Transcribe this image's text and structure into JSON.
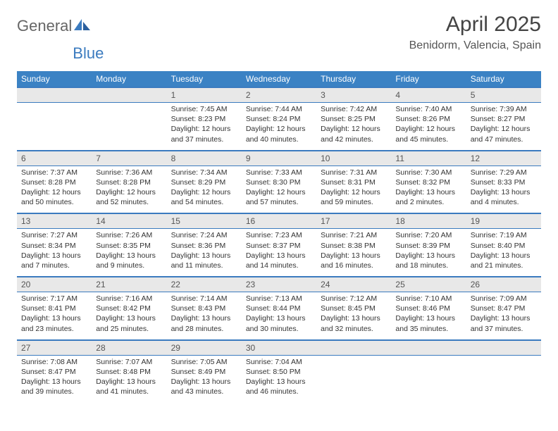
{
  "brand": {
    "general": "General",
    "blue": "Blue"
  },
  "title": "April 2025",
  "location": "Benidorm, Valencia, Spain",
  "colors": {
    "header_bg": "#3b82c4",
    "header_text": "#ffffff",
    "row_border": "#3b7bbf",
    "daynum_bg": "#e8e8e8",
    "text": "#333333",
    "title_text": "#444444",
    "logo_gray": "#666666",
    "logo_blue": "#3b7bbf",
    "background": "#ffffff"
  },
  "weekdays": [
    "Sunday",
    "Monday",
    "Tuesday",
    "Wednesday",
    "Thursday",
    "Friday",
    "Saturday"
  ],
  "typography": {
    "title_fontsize": 30,
    "location_fontsize": 16,
    "weekday_fontsize": 12,
    "daynum_fontsize": 12,
    "cell_fontsize": 10.5
  },
  "weeks": [
    [
      null,
      null,
      {
        "n": "1",
        "sr": "7:45 AM",
        "ss": "8:23 PM",
        "dl": "12 hours and 37 minutes."
      },
      {
        "n": "2",
        "sr": "7:44 AM",
        "ss": "8:24 PM",
        "dl": "12 hours and 40 minutes."
      },
      {
        "n": "3",
        "sr": "7:42 AM",
        "ss": "8:25 PM",
        "dl": "12 hours and 42 minutes."
      },
      {
        "n": "4",
        "sr": "7:40 AM",
        "ss": "8:26 PM",
        "dl": "12 hours and 45 minutes."
      },
      {
        "n": "5",
        "sr": "7:39 AM",
        "ss": "8:27 PM",
        "dl": "12 hours and 47 minutes."
      }
    ],
    [
      {
        "n": "6",
        "sr": "7:37 AM",
        "ss": "8:28 PM",
        "dl": "12 hours and 50 minutes."
      },
      {
        "n": "7",
        "sr": "7:36 AM",
        "ss": "8:28 PM",
        "dl": "12 hours and 52 minutes."
      },
      {
        "n": "8",
        "sr": "7:34 AM",
        "ss": "8:29 PM",
        "dl": "12 hours and 54 minutes."
      },
      {
        "n": "9",
        "sr": "7:33 AM",
        "ss": "8:30 PM",
        "dl": "12 hours and 57 minutes."
      },
      {
        "n": "10",
        "sr": "7:31 AM",
        "ss": "8:31 PM",
        "dl": "12 hours and 59 minutes."
      },
      {
        "n": "11",
        "sr": "7:30 AM",
        "ss": "8:32 PM",
        "dl": "13 hours and 2 minutes."
      },
      {
        "n": "12",
        "sr": "7:29 AM",
        "ss": "8:33 PM",
        "dl": "13 hours and 4 minutes."
      }
    ],
    [
      {
        "n": "13",
        "sr": "7:27 AM",
        "ss": "8:34 PM",
        "dl": "13 hours and 7 minutes."
      },
      {
        "n": "14",
        "sr": "7:26 AM",
        "ss": "8:35 PM",
        "dl": "13 hours and 9 minutes."
      },
      {
        "n": "15",
        "sr": "7:24 AM",
        "ss": "8:36 PM",
        "dl": "13 hours and 11 minutes."
      },
      {
        "n": "16",
        "sr": "7:23 AM",
        "ss": "8:37 PM",
        "dl": "13 hours and 14 minutes."
      },
      {
        "n": "17",
        "sr": "7:21 AM",
        "ss": "8:38 PM",
        "dl": "13 hours and 16 minutes."
      },
      {
        "n": "18",
        "sr": "7:20 AM",
        "ss": "8:39 PM",
        "dl": "13 hours and 18 minutes."
      },
      {
        "n": "19",
        "sr": "7:19 AM",
        "ss": "8:40 PM",
        "dl": "13 hours and 21 minutes."
      }
    ],
    [
      {
        "n": "20",
        "sr": "7:17 AM",
        "ss": "8:41 PM",
        "dl": "13 hours and 23 minutes."
      },
      {
        "n": "21",
        "sr": "7:16 AM",
        "ss": "8:42 PM",
        "dl": "13 hours and 25 minutes."
      },
      {
        "n": "22",
        "sr": "7:14 AM",
        "ss": "8:43 PM",
        "dl": "13 hours and 28 minutes."
      },
      {
        "n": "23",
        "sr": "7:13 AM",
        "ss": "8:44 PM",
        "dl": "13 hours and 30 minutes."
      },
      {
        "n": "24",
        "sr": "7:12 AM",
        "ss": "8:45 PM",
        "dl": "13 hours and 32 minutes."
      },
      {
        "n": "25",
        "sr": "7:10 AM",
        "ss": "8:46 PM",
        "dl": "13 hours and 35 minutes."
      },
      {
        "n": "26",
        "sr": "7:09 AM",
        "ss": "8:47 PM",
        "dl": "13 hours and 37 minutes."
      }
    ],
    [
      {
        "n": "27",
        "sr": "7:08 AM",
        "ss": "8:47 PM",
        "dl": "13 hours and 39 minutes."
      },
      {
        "n": "28",
        "sr": "7:07 AM",
        "ss": "8:48 PM",
        "dl": "13 hours and 41 minutes."
      },
      {
        "n": "29",
        "sr": "7:05 AM",
        "ss": "8:49 PM",
        "dl": "13 hours and 43 minutes."
      },
      {
        "n": "30",
        "sr": "7:04 AM",
        "ss": "8:50 PM",
        "dl": "13 hours and 46 minutes."
      },
      null,
      null,
      null
    ]
  ],
  "labels": {
    "sunrise": "Sunrise: ",
    "sunset": "Sunset: ",
    "daylight": "Daylight: "
  }
}
